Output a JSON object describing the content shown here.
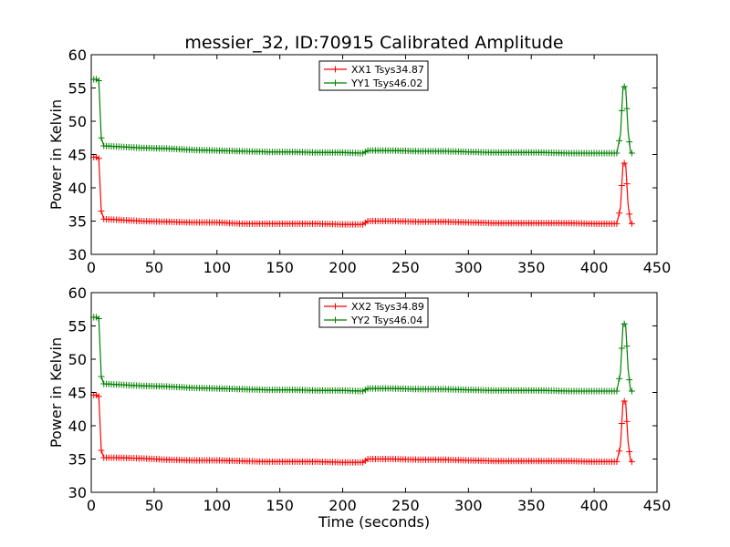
{
  "title": "messier_32, ID:70915 Calibrated Amplitude",
  "colors": {
    "xx": "#ff0000",
    "yy": "#008000",
    "axes": "#000000",
    "background": "#ffffff"
  },
  "chart_data": [
    {
      "type": "line",
      "ylabel": "Power in Kelvin",
      "xlabel": "",
      "xlim": [
        0,
        450
      ],
      "ylim": [
        30,
        60
      ],
      "xticks": [
        0,
        50,
        100,
        150,
        200,
        250,
        300,
        350,
        400,
        450
      ],
      "yticks": [
        30,
        35,
        40,
        45,
        50,
        55,
        60
      ],
      "grid": false,
      "legend_position": "top-center",
      "marker": "plus",
      "series": [
        {
          "name": "XX1 Tsys34.87",
          "color": "#ff0000",
          "x": [
            2,
            4,
            6,
            8,
            10,
            20,
            40,
            60,
            80,
            100,
            120,
            140,
            160,
            180,
            200,
            216,
            220,
            240,
            260,
            280,
            300,
            320,
            340,
            360,
            380,
            400,
            410,
            418,
            421,
            423,
            425,
            427,
            429,
            431
          ],
          "y": [
            44.6,
            44.6,
            44.4,
            36.5,
            35.3,
            35.2,
            35.0,
            34.9,
            34.8,
            34.8,
            34.6,
            34.6,
            34.6,
            34.6,
            34.5,
            34.5,
            35.0,
            35.0,
            34.9,
            34.9,
            34.8,
            34.7,
            34.7,
            34.7,
            34.7,
            34.6,
            34.6,
            34.6,
            37.0,
            43.7,
            43.7,
            37.5,
            34.6,
            34.6
          ]
        },
        {
          "name": "YY1 Tsys46.02",
          "color": "#008000",
          "x": [
            2,
            4,
            6,
            8,
            10,
            20,
            40,
            60,
            80,
            100,
            120,
            140,
            160,
            180,
            200,
            216,
            220,
            240,
            260,
            280,
            300,
            320,
            340,
            360,
            380,
            400,
            410,
            418,
            421,
            423,
            425,
            427,
            429,
            431
          ],
          "y": [
            56.3,
            56.3,
            56.1,
            47.5,
            46.3,
            46.2,
            46.0,
            45.9,
            45.7,
            45.6,
            45.5,
            45.4,
            45.4,
            45.3,
            45.3,
            45.2,
            45.6,
            45.6,
            45.5,
            45.5,
            45.4,
            45.3,
            45.3,
            45.3,
            45.2,
            45.2,
            45.2,
            45.2,
            48.0,
            55.2,
            55.2,
            48.6,
            45.2,
            45.2
          ]
        }
      ]
    },
    {
      "type": "line",
      "ylabel": "Power in Kelvin",
      "xlabel": "Time (seconds)",
      "xlim": [
        0,
        450
      ],
      "ylim": [
        30,
        60
      ],
      "xticks": [
        0,
        50,
        100,
        150,
        200,
        250,
        300,
        350,
        400,
        450
      ],
      "yticks": [
        30,
        35,
        40,
        45,
        50,
        55,
        60
      ],
      "grid": false,
      "legend_position": "top-center",
      "marker": "plus",
      "series": [
        {
          "name": "XX2 Tsys34.89",
          "color": "#ff0000",
          "x": [
            2,
            4,
            6,
            8,
            10,
            20,
            40,
            60,
            80,
            100,
            120,
            140,
            160,
            180,
            200,
            216,
            220,
            240,
            260,
            280,
            300,
            320,
            340,
            360,
            380,
            400,
            410,
            418,
            421,
            423,
            425,
            427,
            429,
            431
          ],
          "y": [
            44.6,
            44.6,
            44.4,
            36.3,
            35.2,
            35.2,
            35.1,
            34.9,
            34.8,
            34.8,
            34.7,
            34.6,
            34.6,
            34.6,
            34.5,
            34.5,
            35.0,
            35.0,
            34.9,
            34.9,
            34.8,
            34.7,
            34.7,
            34.7,
            34.7,
            34.6,
            34.6,
            34.6,
            37.0,
            43.7,
            43.7,
            37.6,
            34.6,
            34.6
          ]
        },
        {
          "name": "YY2 Tsys46.04",
          "color": "#008000",
          "x": [
            2,
            4,
            6,
            8,
            10,
            20,
            40,
            60,
            80,
            100,
            120,
            140,
            160,
            180,
            200,
            216,
            220,
            240,
            260,
            280,
            300,
            320,
            340,
            360,
            380,
            400,
            410,
            418,
            421,
            423,
            425,
            427,
            429,
            431
          ],
          "y": [
            56.3,
            56.3,
            56.1,
            47.4,
            46.3,
            46.2,
            46.0,
            45.9,
            45.7,
            45.6,
            45.5,
            45.4,
            45.4,
            45.3,
            45.3,
            45.2,
            45.6,
            45.6,
            45.5,
            45.5,
            45.4,
            45.3,
            45.3,
            45.3,
            45.2,
            45.2,
            45.2,
            45.2,
            48.0,
            55.3,
            55.3,
            48.6,
            45.2,
            45.2
          ]
        }
      ]
    }
  ]
}
